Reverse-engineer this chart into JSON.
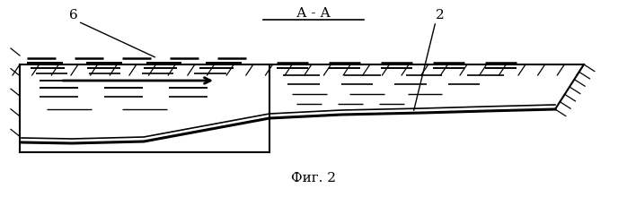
{
  "title": "А - А",
  "caption": "Фиг. 2",
  "label_6": "6",
  "label_2": "2",
  "bg_color": "#ffffff",
  "line_color": "#000000",
  "fig_width": 6.98,
  "fig_height": 2.2,
  "dpi": 100
}
